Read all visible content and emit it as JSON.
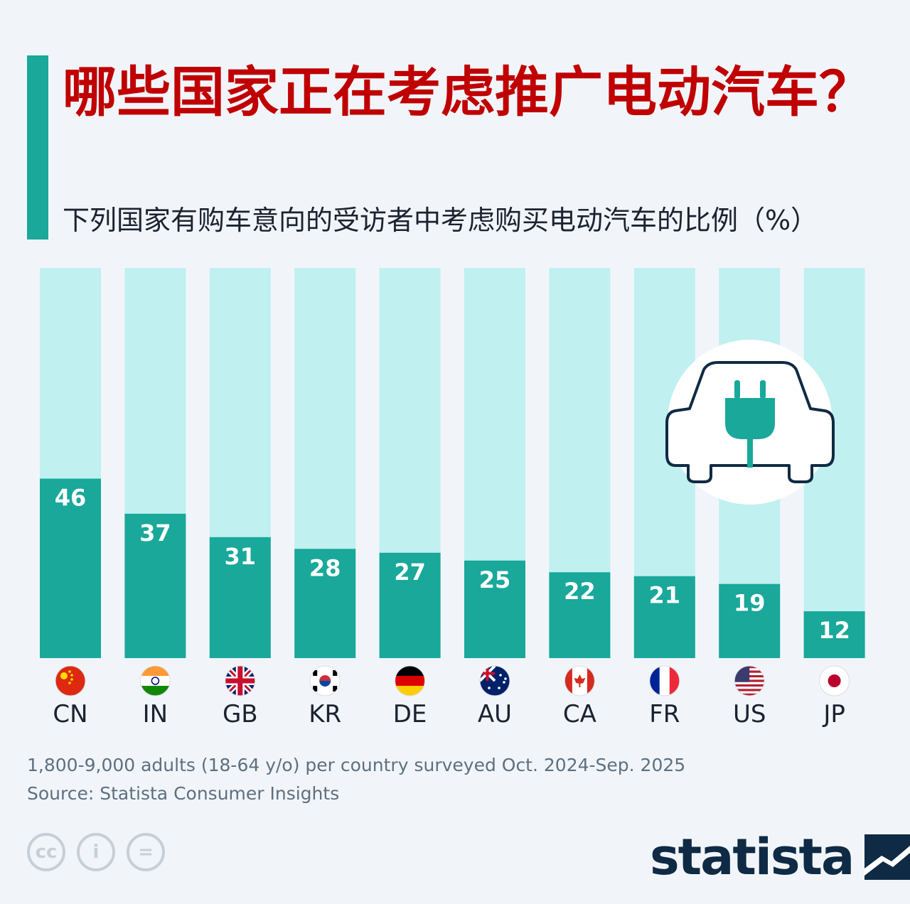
{
  "title": "哪些国家正在考虑推广电动汽车？",
  "subtitle": "下列国家有购车意向的受访者中考虑购买电动汽车的比例（%）",
  "chart_data": {
    "type": "bar",
    "categories": [
      "CN",
      "IN",
      "GB",
      "KR",
      "DE",
      "AU",
      "CA",
      "FR",
      "US",
      "JP"
    ],
    "values": [
      46,
      37,
      31,
      28,
      27,
      25,
      22,
      21,
      19,
      12
    ],
    "ylim": [
      0,
      100
    ],
    "grid": false,
    "legend": "none"
  },
  "colors": {
    "bar": "#19a89a",
    "track": "#c0f0f0",
    "title": "#c00000",
    "logo": "#0f2a44"
  },
  "footnote": "1,800-9,000 adults (18-64 y/o) per country surveyed Oct. 2024-Sep. 2025",
  "source": "Source: Statista Consumer Insights",
  "license_icons": [
    "cc-icon",
    "attribution-icon",
    "no-derivatives-icon"
  ],
  "license_glyphs": [
    "cc",
    "i",
    "="
  ],
  "logo_text": "statista"
}
